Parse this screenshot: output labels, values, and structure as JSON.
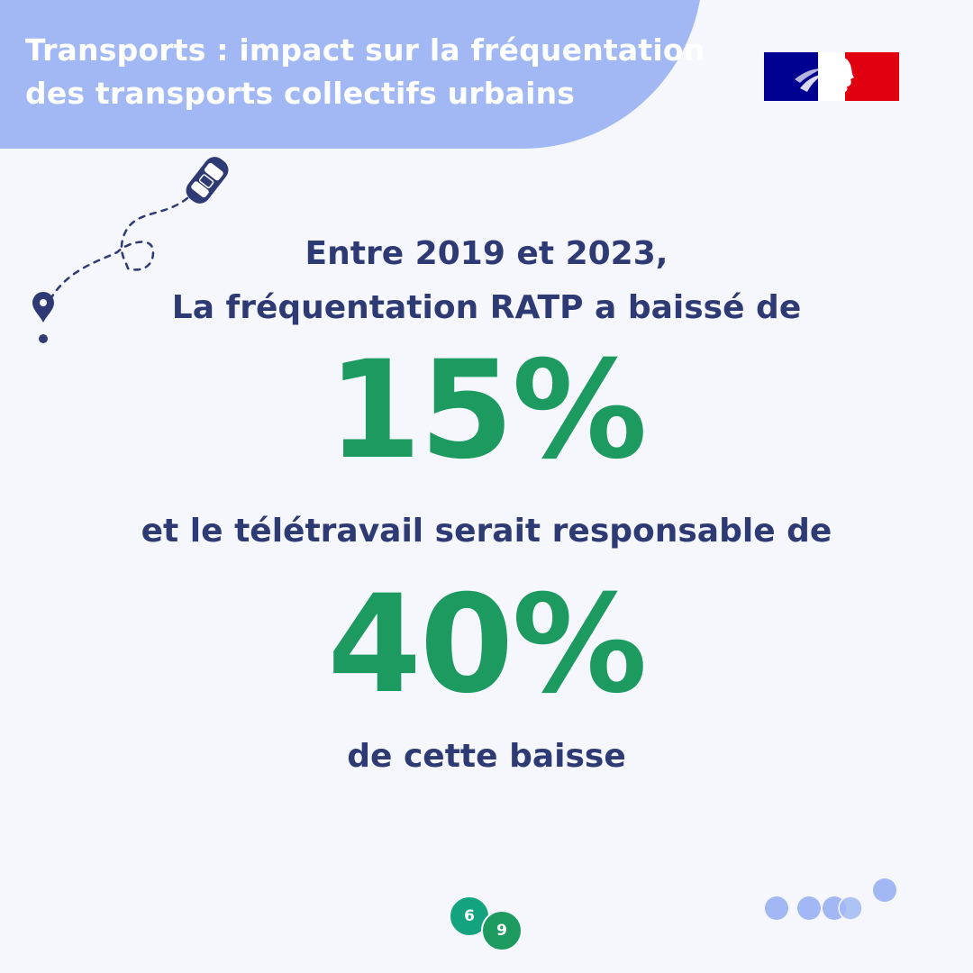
{
  "header": {
    "title_line1": "Transports : impact sur la fréquentation",
    "title_line2": "des transports collectifs urbains"
  },
  "logo": {
    "icon": "marianne-logo-icon",
    "colors": {
      "blue": "#000091",
      "white": "#FFFFFF",
      "red": "#E1000F"
    }
  },
  "illustration": {
    "icons": [
      "car-icon",
      "location-pin-icon",
      "dashed-route"
    ]
  },
  "main": {
    "intro_line1": "Entre 2019 et 2023,",
    "intro_line2": "La fréquentation RATP a baissé de",
    "stat1": "15%",
    "middle": "et le télétravail serait responsable de",
    "stat2": "40%",
    "outro": "de cette baisse"
  },
  "pagination": {
    "current": "6",
    "total": "9"
  },
  "colors": {
    "background": "#F5F7FD",
    "banner": "#A2B8F5",
    "text": "#2E3A73",
    "highlight": "#1D9A60",
    "dots": "#A2B8F5"
  }
}
